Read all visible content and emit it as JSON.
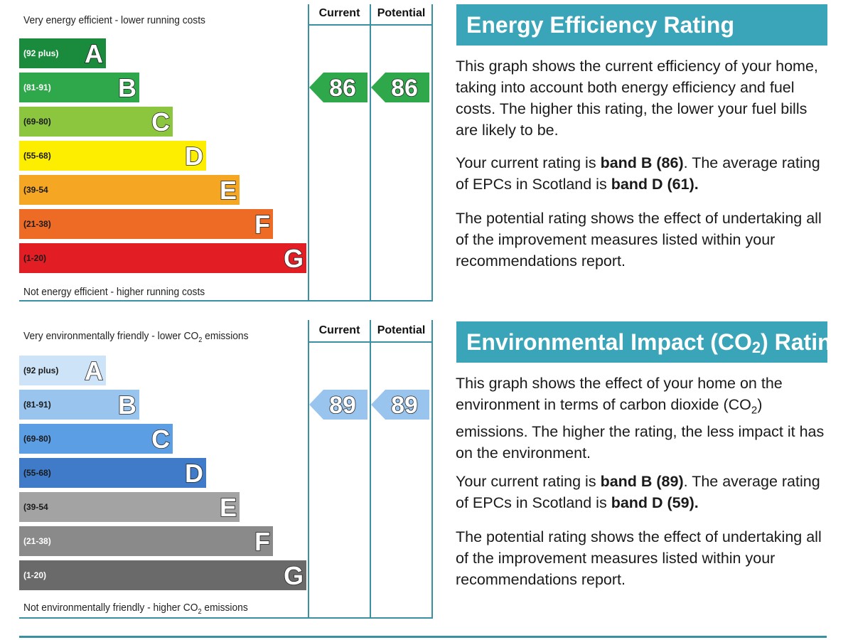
{
  "chart_data": [
    {
      "type": "bar",
      "title": "Energy Efficiency Rating",
      "top_caption": "Very energy efficient - lower running costs",
      "bottom_caption": "Not energy efficient - higher running costs",
      "column_headers": [
        "Current",
        "Potential"
      ],
      "bands": [
        {
          "letter": "A",
          "range": "(92 plus)",
          "color": "#1a8b3c",
          "range_color": "#ffffff"
        },
        {
          "letter": "B",
          "range": "(81-91)",
          "color": "#2ea84a",
          "range_color": "#ffffff"
        },
        {
          "letter": "C",
          "range": "(69-80)",
          "color": "#8cc63f",
          "range_color": "#1a1a1a"
        },
        {
          "letter": "D",
          "range": "(55-68)",
          "color": "#fdee00",
          "range_color": "#1a1a1a"
        },
        {
          "letter": "E",
          "range": "(39-54",
          "color": "#f5a623",
          "range_color": "#1a1a1a"
        },
        {
          "letter": "F",
          "range": "(21-38)",
          "color": "#ee6b25",
          "range_color": "#1a1a1a"
        },
        {
          "letter": "G",
          "range": "(1-20)",
          "color": "#e31d24",
          "range_color": "#1a1a1a"
        }
      ],
      "current": {
        "value": "86",
        "band": "B",
        "color": "#2ea84a"
      },
      "potential": {
        "value": "86",
        "band": "B",
        "color": "#2ea84a"
      }
    },
    {
      "type": "bar",
      "title_parts": [
        "Environmental Impact (CO",
        "2",
        ") Rating"
      ],
      "top_caption_parts": [
        "Very environmentally friendly - lower CO",
        "2",
        " emissions"
      ],
      "bottom_caption_parts": [
        "Not environmentally friendly - higher CO",
        "2",
        " emissions"
      ],
      "column_headers": [
        "Current",
        "Potential"
      ],
      "bands": [
        {
          "letter": "A",
          "range": "(92 plus)",
          "color": "#cde3f7",
          "range_color": "#1a1a1a"
        },
        {
          "letter": "B",
          "range": "(81-91)",
          "color": "#98c4ed",
          "range_color": "#1a1a1a"
        },
        {
          "letter": "C",
          "range": "(69-80)",
          "color": "#5c9ee3",
          "range_color": "#1a1a1a"
        },
        {
          "letter": "D",
          "range": "(55-68)",
          "color": "#3f7bc8",
          "range_color": "#1a1a1a"
        },
        {
          "letter": "E",
          "range": "(39-54",
          "color": "#a3a3a3",
          "range_color": "#1a1a1a"
        },
        {
          "letter": "F",
          "range": "(21-38)",
          "color": "#8a8a8a",
          "range_color": "#ffffff"
        },
        {
          "letter": "G",
          "range": "(1-20)",
          "color": "#6a6a6a",
          "range_color": "#ffffff"
        }
      ],
      "current": {
        "value": "89",
        "band": "B",
        "color": "#98c4ed"
      },
      "potential": {
        "value": "89",
        "band": "B",
        "color": "#98c4ed"
      }
    }
  ],
  "energy_text": {
    "p1": "This graph shows the current efficiency of your home, taking into account both energy efficiency and fuel costs. The higher this rating, the lower your fuel bills are likely to be.",
    "p2_a": "Your current rating is ",
    "p2_b": "band B (86)",
    "p2_c": ". The average rating of EPCs in Scotland is ",
    "p2_d": "band D (61).",
    "p3": "The potential rating shows the effect of undertaking all of the improvement measures listed within your recommendations report."
  },
  "env_text": {
    "p1_a": "This graph shows the effect of your home on the environment in terms of carbon dioxide (CO",
    "p1_sub": "2",
    "p1_b": ") emissions. The higher the rating, the less impact it has on the environment.",
    "p2_a": "Your current rating is ",
    "p2_b": "band B (89)",
    "p2_c": ". The average rating of EPCs in Scotland is ",
    "p2_d": "band D (59).",
    "p3": "The potential rating shows the effect of undertaking all of the improvement measures listed within your recommendations report."
  }
}
